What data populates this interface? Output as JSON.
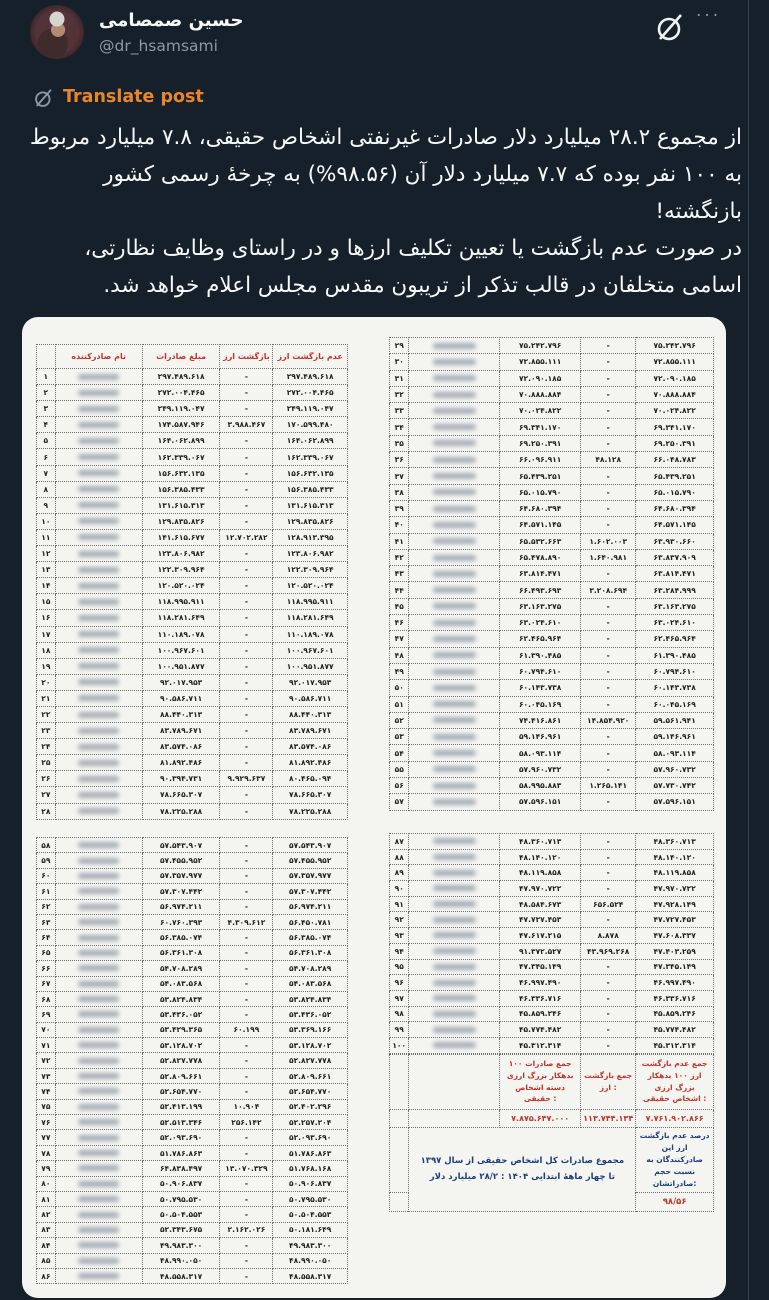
{
  "page": {
    "background": "#15202b",
    "divider_color": "#38444d",
    "accent_orange": "#e8862d"
  },
  "header": {
    "display_name": "حسین صمصامی",
    "handle": "@dr_hsamsami",
    "more_label": "···"
  },
  "translate": {
    "label": "Translate post"
  },
  "tweet": {
    "text_line1": "از مجموع ۲۸.۲ میلیارد دلار صادرات غیرنفتی اشخاص حقیقی، ۷.۸ میلیارد مربوط به ۱۰۰ نفر بوده که ۷.۷ میلیارد دلار آن (۹۸.۵۶%) به چرخۀ رسمی کشور بازنگشته!",
    "text_line2": "در صورت عدم بازگشت یا تعیین تکلیف ارزها و در راستای وظایف نظارتی، اسامی متخلفان در قالب تذکر از تریبون مقدس مجلس اعلام خواهد شد."
  },
  "media": {
    "table": {
      "headers": {
        "name": "نام صادرکننده",
        "amount": "مبلغ صادرات",
        "returned": "بازگشت ارز",
        "not_returned": "عدم بازگشت ارز"
      },
      "colors": {
        "header_red": "#bf3328",
        "note_blue": "#1d3c78",
        "text": "#1f1f1f"
      },
      "blocks": [
        {
          "rows": [
            [
              "۱",
              "",
              "۲۹۷.۴۸۹.۶۱۸",
              "-",
              "۲۹۷.۴۸۹.۶۱۸"
            ],
            [
              "۲",
              "",
              "۲۷۲.۰۰۴.۴۶۵",
              "-",
              "۲۷۲.۰۰۴.۴۶۵"
            ],
            [
              "۳",
              "",
              "۲۴۹.۱۱۹.۰۴۷",
              "-",
              "۲۴۹.۱۱۹.۰۴۷"
            ],
            [
              "۴",
              "",
              "۱۷۴.۵۸۷.۹۴۶",
              "۳.۹۸۸.۴۶۷",
              "۱۷۰.۵۹۹.۴۸۰"
            ],
            [
              "۵",
              "",
              "۱۶۴.۰۶۲.۸۹۹",
              "-",
              "۱۶۴.۰۶۲.۸۹۹"
            ],
            [
              "۶",
              "",
              "۱۶۲.۳۳۹.۰۶۷",
              "-",
              "۱۶۲.۳۳۹.۰۶۷"
            ],
            [
              "۷",
              "",
              "۱۵۶.۶۳۲.۱۳۵",
              "-",
              "۱۵۶.۶۳۲.۱۳۵"
            ],
            [
              "۸",
              "",
              "۱۵۶.۳۸۵.۴۳۳",
              "-",
              "۱۵۶.۳۸۵.۴۳۳"
            ],
            [
              "۹",
              "",
              "۱۳۱.۶۱۵.۳۱۳",
              "-",
              "۱۳۱.۶۱۵.۳۱۳"
            ],
            [
              "۱۰",
              "",
              "۱۲۹.۸۳۵.۸۲۶",
              "-",
              "۱۲۹.۸۳۵.۸۲۶"
            ],
            [
              "۱۱",
              "",
              "۱۴۱.۶۱۵.۶۷۷",
              "۱۲.۷۰۲.۲۸۲",
              "۱۲۸.۹۱۳.۳۹۵"
            ],
            [
              "۱۲",
              "",
              "۱۲۳.۸۰۶.۹۸۲",
              "-",
              "۱۲۳.۸۰۶.۹۸۲"
            ],
            [
              "۱۳",
              "",
              "۱۲۲.۳۰۹.۹۶۴",
              "-",
              "۱۲۲.۳۰۹.۹۶۴"
            ],
            [
              "۱۴",
              "",
              "۱۲۰.۵۲۰.۰۲۴",
              "-",
              "۱۲۰.۵۲۰.۰۲۴"
            ],
            [
              "۱۵",
              "",
              "۱۱۸.۹۹۵.۹۱۱",
              "-",
              "۱۱۸.۹۹۵.۹۱۱"
            ],
            [
              "۱۶",
              "",
              "۱۱۸.۲۸۱.۶۴۹",
              "-",
              "۱۱۸.۲۸۱.۶۴۹"
            ],
            [
              "۱۷",
              "",
              "۱۱۰.۱۸۹.۰۷۸",
              "-",
              "۱۱۰.۱۸۹.۰۷۸"
            ],
            [
              "۱۸",
              "",
              "۱۰۰.۹۶۷.۶۰۱",
              "-",
              "۱۰۰.۹۶۷.۶۰۱"
            ],
            [
              "۱۹",
              "",
              "۱۰۰.۹۵۱.۸۷۷",
              "-",
              "۱۰۰.۹۵۱.۸۷۷"
            ],
            [
              "۲۰",
              "",
              "۹۲.۰۱۷.۹۵۳",
              "-",
              "۹۲.۰۱۷.۹۵۳"
            ],
            [
              "۲۱",
              "",
              "۹۰.۵۸۶.۷۱۱",
              "-",
              "۹۰.۵۸۶.۷۱۱"
            ],
            [
              "۲۲",
              "",
              "۸۸.۴۴۰.۳۱۳",
              "-",
              "۸۸.۴۴۰.۳۱۳"
            ],
            [
              "۲۳",
              "",
              "۸۳.۷۸۹.۶۷۱",
              "-",
              "۸۳.۷۸۹.۶۷۱"
            ],
            [
              "۲۴",
              "",
              "۸۳.۵۷۴.۰۸۶",
              "-",
              "۸۳.۵۷۴.۰۸۶"
            ],
            [
              "۲۵",
              "",
              "۸۱.۸۹۲.۴۸۶",
              "-",
              "۸۱.۸۹۲.۴۸۶"
            ],
            [
              "۲۶",
              "",
              "۹۰.۳۹۴.۷۳۱",
              "۹.۹۲۹.۶۳۷",
              "۸۰.۴۶۵.۰۹۴"
            ],
            [
              "۲۷",
              "",
              "۷۸.۶۶۵.۳۰۷",
              "-",
              "۷۸.۶۶۵.۳۰۷"
            ],
            [
              "۲۸",
              "",
              "۷۸.۲۲۵.۲۸۸",
              "-",
              "۷۸.۲۲۵.۲۸۸"
            ]
          ]
        },
        {
          "rows": [
            [
              "۲۹",
              "",
              "۷۵.۲۴۲.۷۹۶",
              "-",
              "۷۵.۲۴۲.۷۹۶"
            ],
            [
              "۳۰",
              "",
              "۷۲.۸۵۵.۱۱۱",
              "-",
              "۷۲.۸۵۵.۱۱۱"
            ],
            [
              "۳۱",
              "",
              "۷۲.۰۹۰.۱۸۵",
              "-",
              "۷۲.۰۹۰.۱۸۵"
            ],
            [
              "۳۲",
              "",
              "۷۰.۸۸۸.۸۸۴",
              "-",
              "۷۰.۸۸۸.۸۸۴"
            ],
            [
              "۳۳",
              "",
              "۷۰.۰۲۴.۸۲۲",
              "-",
              "۷۰.۰۲۴.۸۲۲"
            ],
            [
              "۳۴",
              "",
              "۶۹.۳۴۱.۱۷۰",
              "-",
              "۶۹.۳۴۱.۱۷۰"
            ],
            [
              "۳۵",
              "",
              "۶۹.۲۵۰.۳۹۱",
              "-",
              "۶۹.۲۵۰.۳۹۱"
            ],
            [
              "۳۶",
              "",
              "۶۶.۰۹۶.۹۱۱",
              "۴۸.۱۲۸",
              "۶۶.۰۴۸.۷۸۳"
            ],
            [
              "۳۷",
              "",
              "۶۵.۴۳۹.۲۵۱",
              "-",
              "۶۵.۴۳۹.۲۵۱"
            ],
            [
              "۳۸",
              "",
              "۶۵.۰۱۵.۷۹۰",
              "-",
              "۶۵.۰۱۵.۷۹۰"
            ],
            [
              "۳۹",
              "",
              "۶۴.۶۸۰.۳۹۴",
              "-",
              "۶۴.۶۸۰.۳۹۴"
            ],
            [
              "۴۰",
              "",
              "۶۴.۵۷۱.۱۴۵",
              "-",
              "۶۴.۵۷۱.۱۴۵"
            ],
            [
              "۴۱",
              "",
              "۶۵.۵۳۲.۶۶۳",
              "۱.۶۰۲.۰۰۳",
              "۶۳.۹۳۰.۶۶۰"
            ],
            [
              "۴۲",
              "",
              "۶۵.۴۷۸.۸۹۰",
              "۱.۶۴۰.۹۸۱",
              "۶۳.۸۳۷.۹۰۹"
            ],
            [
              "۴۳",
              "",
              "۶۳.۸۱۴.۴۷۱",
              "-",
              "۶۳.۸۱۴.۴۷۱"
            ],
            [
              "۴۴",
              "",
              "۶۶.۴۹۳.۶۹۳",
              "۳.۲۰۸.۶۹۴",
              "۶۳.۲۸۴.۹۹۹"
            ],
            [
              "۴۵",
              "",
              "۶۳.۱۶۳.۲۷۵",
              "-",
              "۶۳.۱۶۳.۲۷۵"
            ],
            [
              "۴۶",
              "",
              "۶۳.۰۲۴.۶۱۰",
              "-",
              "۶۳.۰۲۴.۶۱۰"
            ],
            [
              "۴۷",
              "",
              "۶۲.۴۶۵.۹۶۴",
              "-",
              "۶۲.۴۶۵.۹۶۴"
            ],
            [
              "۴۸",
              "",
              "۶۱.۳۹۰.۴۸۵",
              "-",
              "۶۱.۳۹۰.۴۸۵"
            ],
            [
              "۴۹",
              "",
              "۶۰.۷۹۴.۶۱۰",
              "-",
              "۶۰.۷۹۴.۶۱۰"
            ],
            [
              "۵۰",
              "",
              "۶۰.۱۴۳.۷۳۸",
              "-",
              "۶۰.۱۴۳.۷۳۸"
            ],
            [
              "۵۱",
              "",
              "۶۰.۰۴۵.۱۶۹",
              "-",
              "۶۰.۰۴۵.۱۶۹"
            ],
            [
              "۵۲",
              "",
              "۷۴.۴۱۶.۸۶۱",
              "۱۴.۸۵۴.۹۲۰",
              "۵۹.۵۶۱.۹۴۱"
            ],
            [
              "۵۳",
              "",
              "۵۹.۱۴۶.۹۶۱",
              "-",
              "۵۹.۱۴۶.۹۶۱"
            ],
            [
              "۵۴",
              "",
              "۵۸.۰۹۳.۱۱۴",
              "-",
              "۵۸.۰۹۳.۱۱۴"
            ],
            [
              "۵۵",
              "",
              "۵۷.۹۶۰.۷۳۲",
              "-",
              "۵۷.۹۶۰.۷۳۲"
            ],
            [
              "۵۶",
              "",
              "۵۸.۹۹۵.۸۸۳",
              "۱.۲۶۵.۱۴۱",
              "۵۷.۷۳۰.۷۴۲"
            ],
            [
              "۵۷",
              "",
              "۵۷.۵۹۶.۱۵۱",
              "-",
              "۵۷.۵۹۶.۱۵۱"
            ]
          ]
        },
        {
          "rows": [
            [
              "۵۸",
              "",
              "۵۷.۵۴۳.۹۰۷",
              "-",
              "۵۷.۵۴۳.۹۰۷"
            ],
            [
              "۵۹",
              "",
              "۵۷.۴۵۵.۹۵۲",
              "-",
              "۵۷.۴۵۵.۹۵۲"
            ],
            [
              "۶۰",
              "",
              "۵۷.۳۵۷.۹۷۷",
              "-",
              "۵۷.۳۵۷.۹۷۷"
            ],
            [
              "۶۱",
              "",
              "۵۷.۳۰۷.۴۴۲",
              "-",
              "۵۷.۳۰۷.۴۴۲"
            ],
            [
              "۶۲",
              "",
              "۵۶.۹۷۴.۲۱۱",
              "-",
              "۵۶.۹۷۴.۲۱۱"
            ],
            [
              "۶۳",
              "",
              "۶۰.۷۶۰.۳۹۳",
              "۴.۳۰۹.۶۱۲",
              "۵۶.۴۵۰.۷۸۱"
            ],
            [
              "۶۴",
              "",
              "۵۶.۳۸۵.۰۷۴",
              "-",
              "۵۶.۳۸۵.۰۷۴"
            ],
            [
              "۶۵",
              "",
              "۵۶.۳۶۱.۳۰۸",
              "-",
              "۵۶.۳۶۱.۳۰۸"
            ],
            [
              "۶۶",
              "",
              "۵۴.۷۰۸.۲۸۹",
              "-",
              "۵۴.۷۰۸.۲۸۹"
            ],
            [
              "۶۷",
              "",
              "۵۴.۰۸۳.۵۶۸",
              "-",
              "۵۴.۰۸۳.۵۶۸"
            ],
            [
              "۶۸",
              "",
              "۵۳.۸۲۴.۸۳۴",
              "-",
              "۵۳.۸۲۴.۸۳۴"
            ],
            [
              "۶۹",
              "",
              "۵۳.۴۳۶.۰۵۲",
              "-",
              "۵۳.۴۳۶.۰۵۲"
            ],
            [
              "۷۰",
              "",
              "۵۳.۴۲۹.۳۶۵",
              "۶۰.۱۹۹",
              "۵۳.۳۶۹.۱۶۶"
            ],
            [
              "۷۱",
              "",
              "۵۳.۱۲۸.۷۰۲",
              "-",
              "۵۳.۱۲۸.۷۰۲"
            ],
            [
              "۷۲",
              "",
              "۵۲.۸۲۷.۷۷۸",
              "-",
              "۵۲.۸۲۷.۷۷۸"
            ],
            [
              "۷۳",
              "",
              "۵۲.۸۰۹.۶۶۱",
              "-",
              "۵۲.۸۰۹.۶۶۱"
            ],
            [
              "۷۴",
              "",
              "۵۲.۶۵۴.۷۷۰",
              "-",
              "۵۲.۶۵۴.۷۷۰"
            ],
            [
              "۷۵",
              "",
              "۵۲.۴۱۳.۱۹۹",
              "۱۰.۹۰۴",
              "۵۲.۴۰۲.۲۹۶"
            ],
            [
              "۷۶",
              "",
              "۵۲.۵۱۳.۳۴۶",
              "۲۵۶.۱۴۲",
              "۵۲.۲۵۷.۲۰۴"
            ],
            [
              "۷۷",
              "",
              "۵۲.۰۹۳.۶۹۰",
              "-",
              "۵۲.۰۹۳.۶۹۰"
            ],
            [
              "۷۸",
              "",
              "۵۱.۷۸۶.۸۶۳",
              "-",
              "۵۱.۷۸۶.۸۶۳"
            ],
            [
              "۷۹",
              "",
              "۶۴.۸۳۸.۴۹۷",
              "۱۳.۰۷۰.۳۲۹",
              "۵۱.۷۶۸.۱۶۸"
            ],
            [
              "۸۰",
              "",
              "۵۰.۹۰۶.۸۳۷",
              "-",
              "۵۰.۹۰۶.۸۳۷"
            ],
            [
              "۸۱",
              "",
              "۵۰.۷۹۵.۵۳۰",
              "-",
              "۵۰.۷۹۵.۵۳۰"
            ],
            [
              "۸۲",
              "",
              "۵۰.۵۰۴.۵۵۳",
              "-",
              "۵۰.۵۰۴.۵۵۳"
            ],
            [
              "۸۳",
              "",
              "۵۲.۳۴۳.۶۷۵",
              "۲.۱۶۲.۰۲۶",
              "۵۰.۱۸۱.۶۴۹"
            ],
            [
              "۸۴",
              "",
              "۴۹.۹۸۳.۳۰۰",
              "-",
              "۴۹.۹۸۳.۳۰۰"
            ],
            [
              "۸۵",
              "",
              "۴۸.۹۹۰.۰۵۰",
              "-",
              "۴۸.۹۹۰.۰۵۰"
            ],
            [
              "۸۶",
              "",
              "۴۸.۵۵۸.۳۱۷",
              "-",
              "۴۸.۵۵۸.۳۱۷"
            ]
          ]
        },
        {
          "rows": [
            [
              "۸۷",
              "",
              "۴۸.۳۶۰.۷۱۳",
              "-",
              "۴۸.۳۶۰.۷۱۳"
            ],
            [
              "۸۸",
              "",
              "۴۸.۱۴۰.۱۲۰",
              "-",
              "۴۸.۱۴۰.۱۲۰"
            ],
            [
              "۸۹",
              "",
              "۴۸.۱۱۹.۸۵۸",
              "-",
              "۴۸.۱۱۹.۸۵۸"
            ],
            [
              "۹۰",
              "",
              "۴۷.۹۷۰.۷۲۲",
              "-",
              "۴۷.۹۷۰.۷۲۲"
            ],
            [
              "۹۱",
              "",
              "۴۸.۵۸۴.۶۷۳",
              "۶۵۶.۵۲۴",
              "۴۷.۹۲۸.۱۴۹"
            ],
            [
              "۹۲",
              "",
              "۴۷.۷۲۷.۴۵۳",
              "-",
              "۴۷.۷۲۷.۴۵۳"
            ],
            [
              "۹۳",
              "",
              "۴۷.۶۱۷.۲۱۵",
              "۸.۸۷۸",
              "۴۷.۶۰۸.۳۳۷"
            ],
            [
              "۹۴",
              "",
              "۹۱.۳۷۲.۵۲۷",
              "۴۳.۹۶۹.۲۶۸",
              "۴۷.۴۰۳.۲۵۹"
            ],
            [
              "۹۵",
              "",
              "۴۷.۳۴۵.۱۴۹",
              "-",
              "۴۷.۳۴۵.۱۴۹"
            ],
            [
              "۹۶",
              "",
              "۴۶.۹۹۷.۴۹۰",
              "-",
              "۴۶.۹۹۷.۴۹۰"
            ],
            [
              "۹۷",
              "",
              "۴۶.۳۳۶.۷۱۶",
              "-",
              "۴۶.۳۳۶.۷۱۶"
            ],
            [
              "۹۸",
              "",
              "۴۵.۸۵۹.۲۴۶",
              "-",
              "۴۵.۸۵۹.۲۴۶"
            ],
            [
              "۹۹",
              "",
              "۴۵.۷۷۴.۴۸۲",
              "-",
              "۴۵.۷۷۴.۴۸۲"
            ],
            [
              "۱۰۰",
              "",
              "۴۵.۳۱۲.۳۱۴",
              "-",
              "۴۵.۳۱۲.۳۱۴"
            ]
          ]
        }
      ],
      "summary": {
        "total_exports_label": "جمع صادرات ۱۰۰ بدهکار بزرگ ارزی دسته اشخاص حقیقی :",
        "total_exports_value": "۷.۸۷۵.۶۴۷.۰۰۰",
        "total_returned_label": "جمع بازگشت ارز :",
        "total_returned_value": "۱۱۳.۷۴۴.۱۳۴",
        "total_not_returned_label": "جمع عدم بازگشت ارز ۱۰۰ بدهکار بزرگ ارزی اشخاص حقیقی :",
        "total_not_returned_value": "۷.۷۶۱.۹۰۲.۸۶۶",
        "note": "مجموع صادرات کل اشخاص حقیقی از سال ۱۳۹۷ تا چهار ماهۀ ابتدایی ۱۴۰۴ : ۲۸/۲ میلیارد دلار",
        "percent_label": "درصد عدم بازگشت ارز این صادرکنندگان به نسبت حجم صادراتشان:",
        "percent_value": "۹۸/۵۶"
      }
    }
  }
}
